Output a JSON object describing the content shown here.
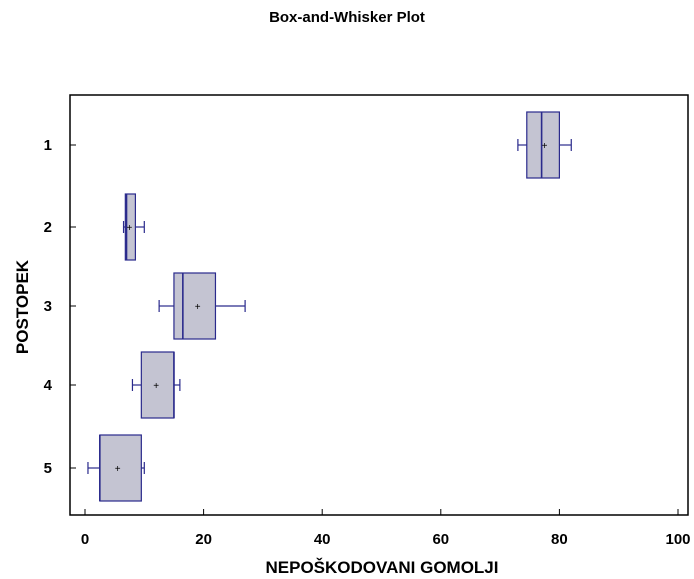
{
  "chart_data": {
    "type": "box",
    "title": "Box-and-Whisker Plot",
    "xlabel": "NEPOŠKODOVANI GOMOLJI",
    "ylabel": "POSTOPEK",
    "xlim": [
      0,
      100
    ],
    "xticks": [
      0,
      20,
      40,
      60,
      80,
      100
    ],
    "orientation": "horizontal",
    "grid": false,
    "box_color": "#c4c4d2",
    "line_color": "#2a2a8c",
    "categories": [
      "1",
      "2",
      "3",
      "4",
      "5"
    ],
    "boxes": [
      {
        "category": "1",
        "min": 73,
        "q1": 74.5,
        "median": 77,
        "mean": 77.5,
        "q3": 80,
        "max": 82
      },
      {
        "category": "2",
        "min": 6.5,
        "q1": 6.8,
        "median": 7,
        "mean": 7.5,
        "q3": 8.5,
        "max": 10
      },
      {
        "category": "3",
        "min": 12.5,
        "q1": 15,
        "median": 16.5,
        "mean": 19,
        "q3": 22,
        "max": 27
      },
      {
        "category": "4",
        "min": 8,
        "q1": 9.5,
        "median": 15,
        "mean": 12,
        "q3": 15,
        "max": 16
      },
      {
        "category": "5",
        "min": 0.5,
        "q1": 2.5,
        "median": 2.5,
        "mean": 5.5,
        "q3": 9.5,
        "max": 10
      }
    ]
  }
}
